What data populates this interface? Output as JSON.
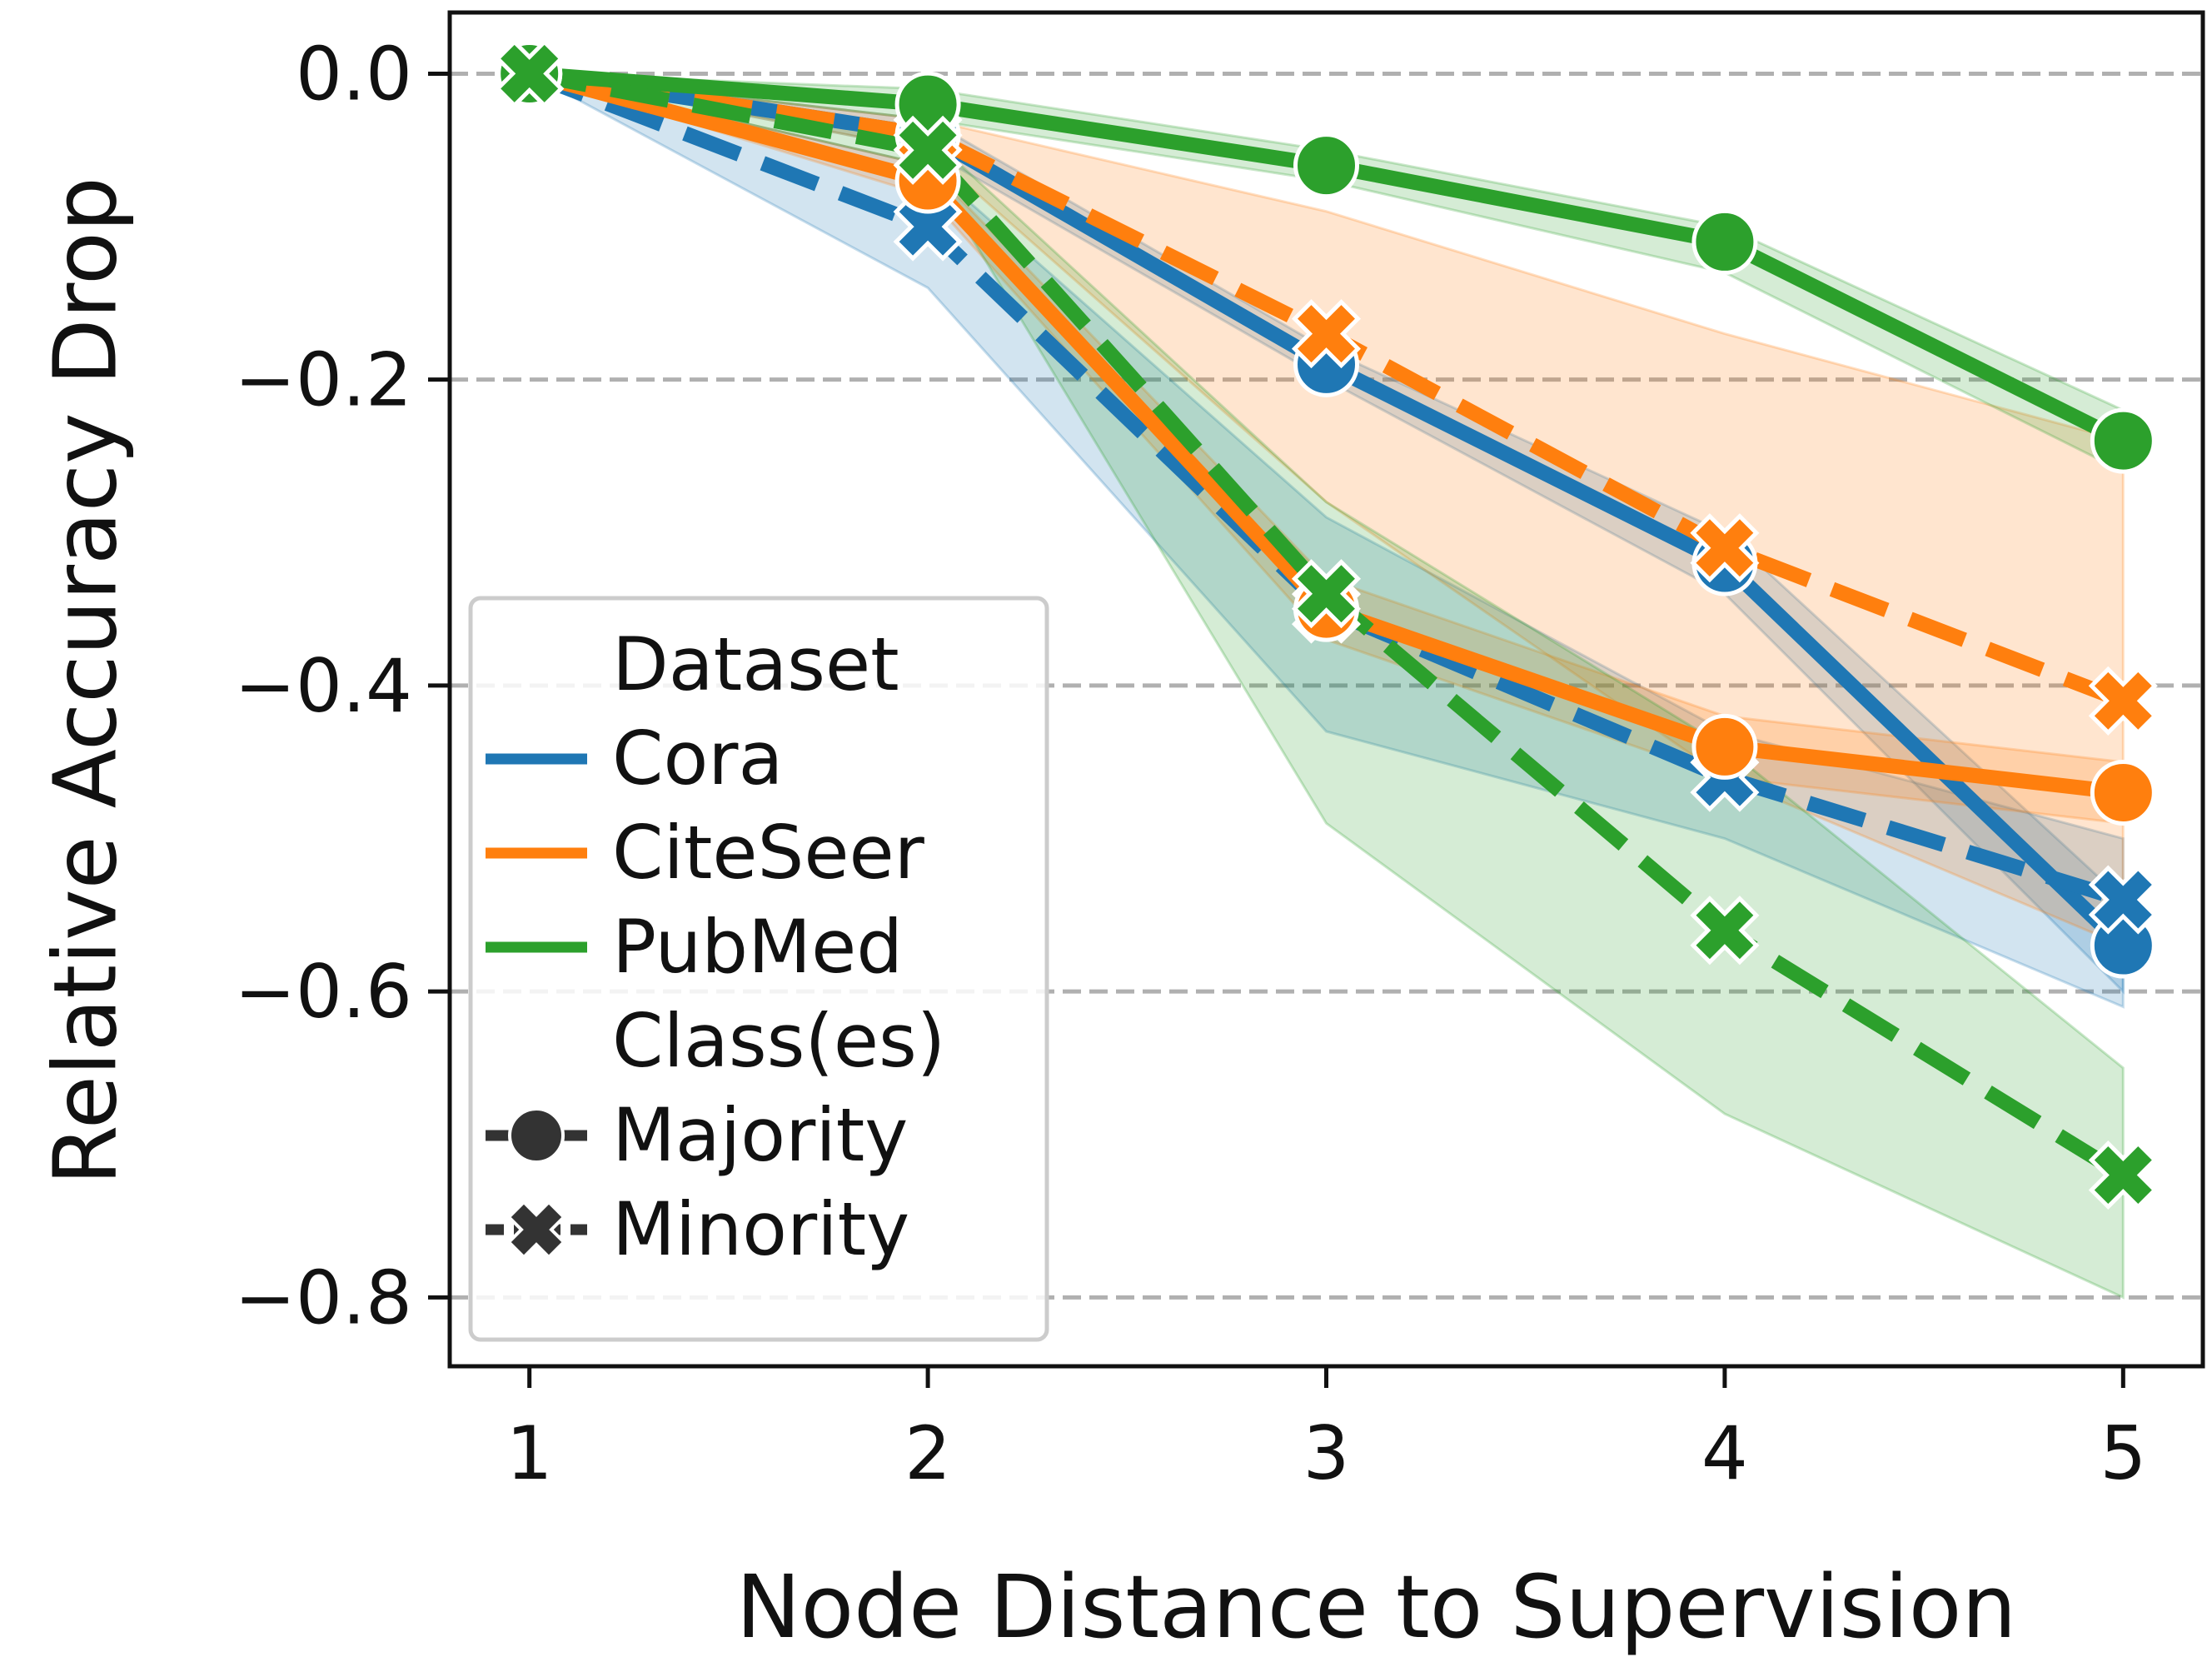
{
  "chart_data": {
    "type": "line",
    "title": "",
    "xlabel": "Node Distance to Supervision",
    "ylabel": "Relative Accuracy Drop",
    "x": [
      1,
      2,
      3,
      4,
      5
    ],
    "x_tick_labels": [
      "1",
      "2",
      "3",
      "4",
      "5"
    ],
    "y_ticks": [
      0.0,
      -0.2,
      -0.4,
      -0.6,
      -0.8
    ],
    "y_tick_labels": [
      "0.0",
      "−0.2",
      "−0.4",
      "−0.6",
      "−0.8"
    ],
    "xlim": [
      0.8,
      5.2
    ],
    "ylim": [
      -0.845,
      0.04
    ],
    "grid": "horizontal dashed",
    "legend_placement": "lower-left",
    "legend": {
      "hue_title": "Dataset",
      "style_title": "Class(es)",
      "datasets": [
        {
          "name": "Cora",
          "color": "#1f77b4"
        },
        {
          "name": "CiteSeer",
          "color": "#ff7f0e"
        },
        {
          "name": "PubMed",
          "color": "#2ca02c"
        }
      ],
      "classes": [
        {
          "name": "Majority",
          "marker": "circle",
          "dash": "solid"
        },
        {
          "name": "Minority",
          "marker": "x",
          "dash": "dashed"
        }
      ]
    },
    "series": [
      {
        "dataset": "Cora",
        "class": "Majority",
        "color": "#1f77b4",
        "marker": "circle",
        "dashed": false,
        "values": [
          0.0,
          -0.04,
          -0.19,
          -0.32,
          -0.57
        ],
        "band_low": [
          0.0,
          -0.05,
          -0.2,
          -0.34,
          -0.6
        ],
        "band_high": [
          0.0,
          -0.03,
          -0.18,
          -0.3,
          -0.54
        ]
      },
      {
        "dataset": "Cora",
        "class": "Minority",
        "color": "#1f77b4",
        "marker": "x",
        "dashed": true,
        "values": [
          0.0,
          -0.1,
          -0.35,
          -0.46,
          -0.54
        ],
        "band_low": [
          0.0,
          -0.14,
          -0.43,
          -0.5,
          -0.61
        ],
        "band_high": [
          0.0,
          -0.06,
          -0.29,
          -0.43,
          -0.5
        ]
      },
      {
        "dataset": "CiteSeer",
        "class": "Majority",
        "color": "#ff7f0e",
        "marker": "circle",
        "dashed": false,
        "values": [
          0.0,
          -0.07,
          -0.35,
          -0.44,
          -0.47
        ],
        "band_low": [
          0.0,
          -0.08,
          -0.37,
          -0.46,
          -0.49
        ],
        "band_high": [
          0.0,
          -0.06,
          -0.33,
          -0.42,
          -0.45
        ]
      },
      {
        "dataset": "CiteSeer",
        "class": "Minority",
        "color": "#ff7f0e",
        "marker": "x",
        "dashed": true,
        "values": [
          0.0,
          -0.04,
          -0.17,
          -0.31,
          -0.41
        ],
        "band_low": [
          0.0,
          -0.05,
          -0.28,
          -0.46,
          -0.57
        ],
        "band_high": [
          0.0,
          -0.03,
          -0.09,
          -0.17,
          -0.24
        ]
      },
      {
        "dataset": "PubMed",
        "class": "Majority",
        "color": "#2ca02c",
        "marker": "circle",
        "dashed": false,
        "values": [
          0.0,
          -0.02,
          -0.06,
          -0.11,
          -0.24
        ],
        "band_low": [
          0.0,
          -0.03,
          -0.07,
          -0.13,
          -0.26
        ],
        "band_high": [
          0.0,
          -0.01,
          -0.05,
          -0.1,
          -0.22
        ]
      },
      {
        "dataset": "PubMed",
        "class": "Minority",
        "color": "#2ca02c",
        "marker": "x",
        "dashed": true,
        "values": [
          0.0,
          -0.05,
          -0.34,
          -0.56,
          -0.72
        ],
        "band_low": [
          0.0,
          -0.06,
          -0.49,
          -0.68,
          -0.8
        ],
        "band_high": [
          0.0,
          -0.04,
          -0.28,
          -0.44,
          -0.65
        ]
      }
    ]
  }
}
